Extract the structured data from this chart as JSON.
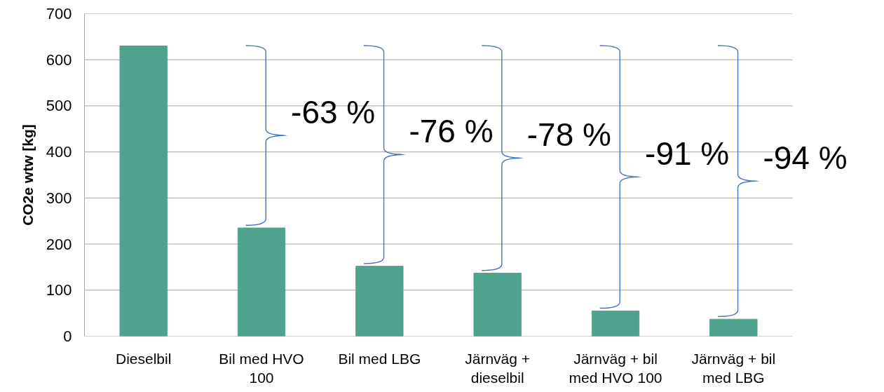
{
  "chart_data": {
    "type": "bar",
    "categories": [
      "Dieselbil",
      "Bil med HVO 100",
      "Bil med LBG",
      "Järnväg + dieselbil",
      "Järnväg + bil med HVO 100",
      "Järnväg + bil med LBG"
    ],
    "values": [
      630,
      235,
      152,
      137,
      55,
      37
    ],
    "color": "#4ea38f",
    "ylabel": "CO2e wtw [kg]",
    "ylim": [
      0,
      700
    ],
    "yticks": [
      0,
      100,
      200,
      300,
      400,
      500,
      600,
      700
    ],
    "grid": "y",
    "annotations": [
      "-63 %",
      "-76 %",
      "-78 %",
      "-91 %",
      "-94 %"
    ]
  }
}
